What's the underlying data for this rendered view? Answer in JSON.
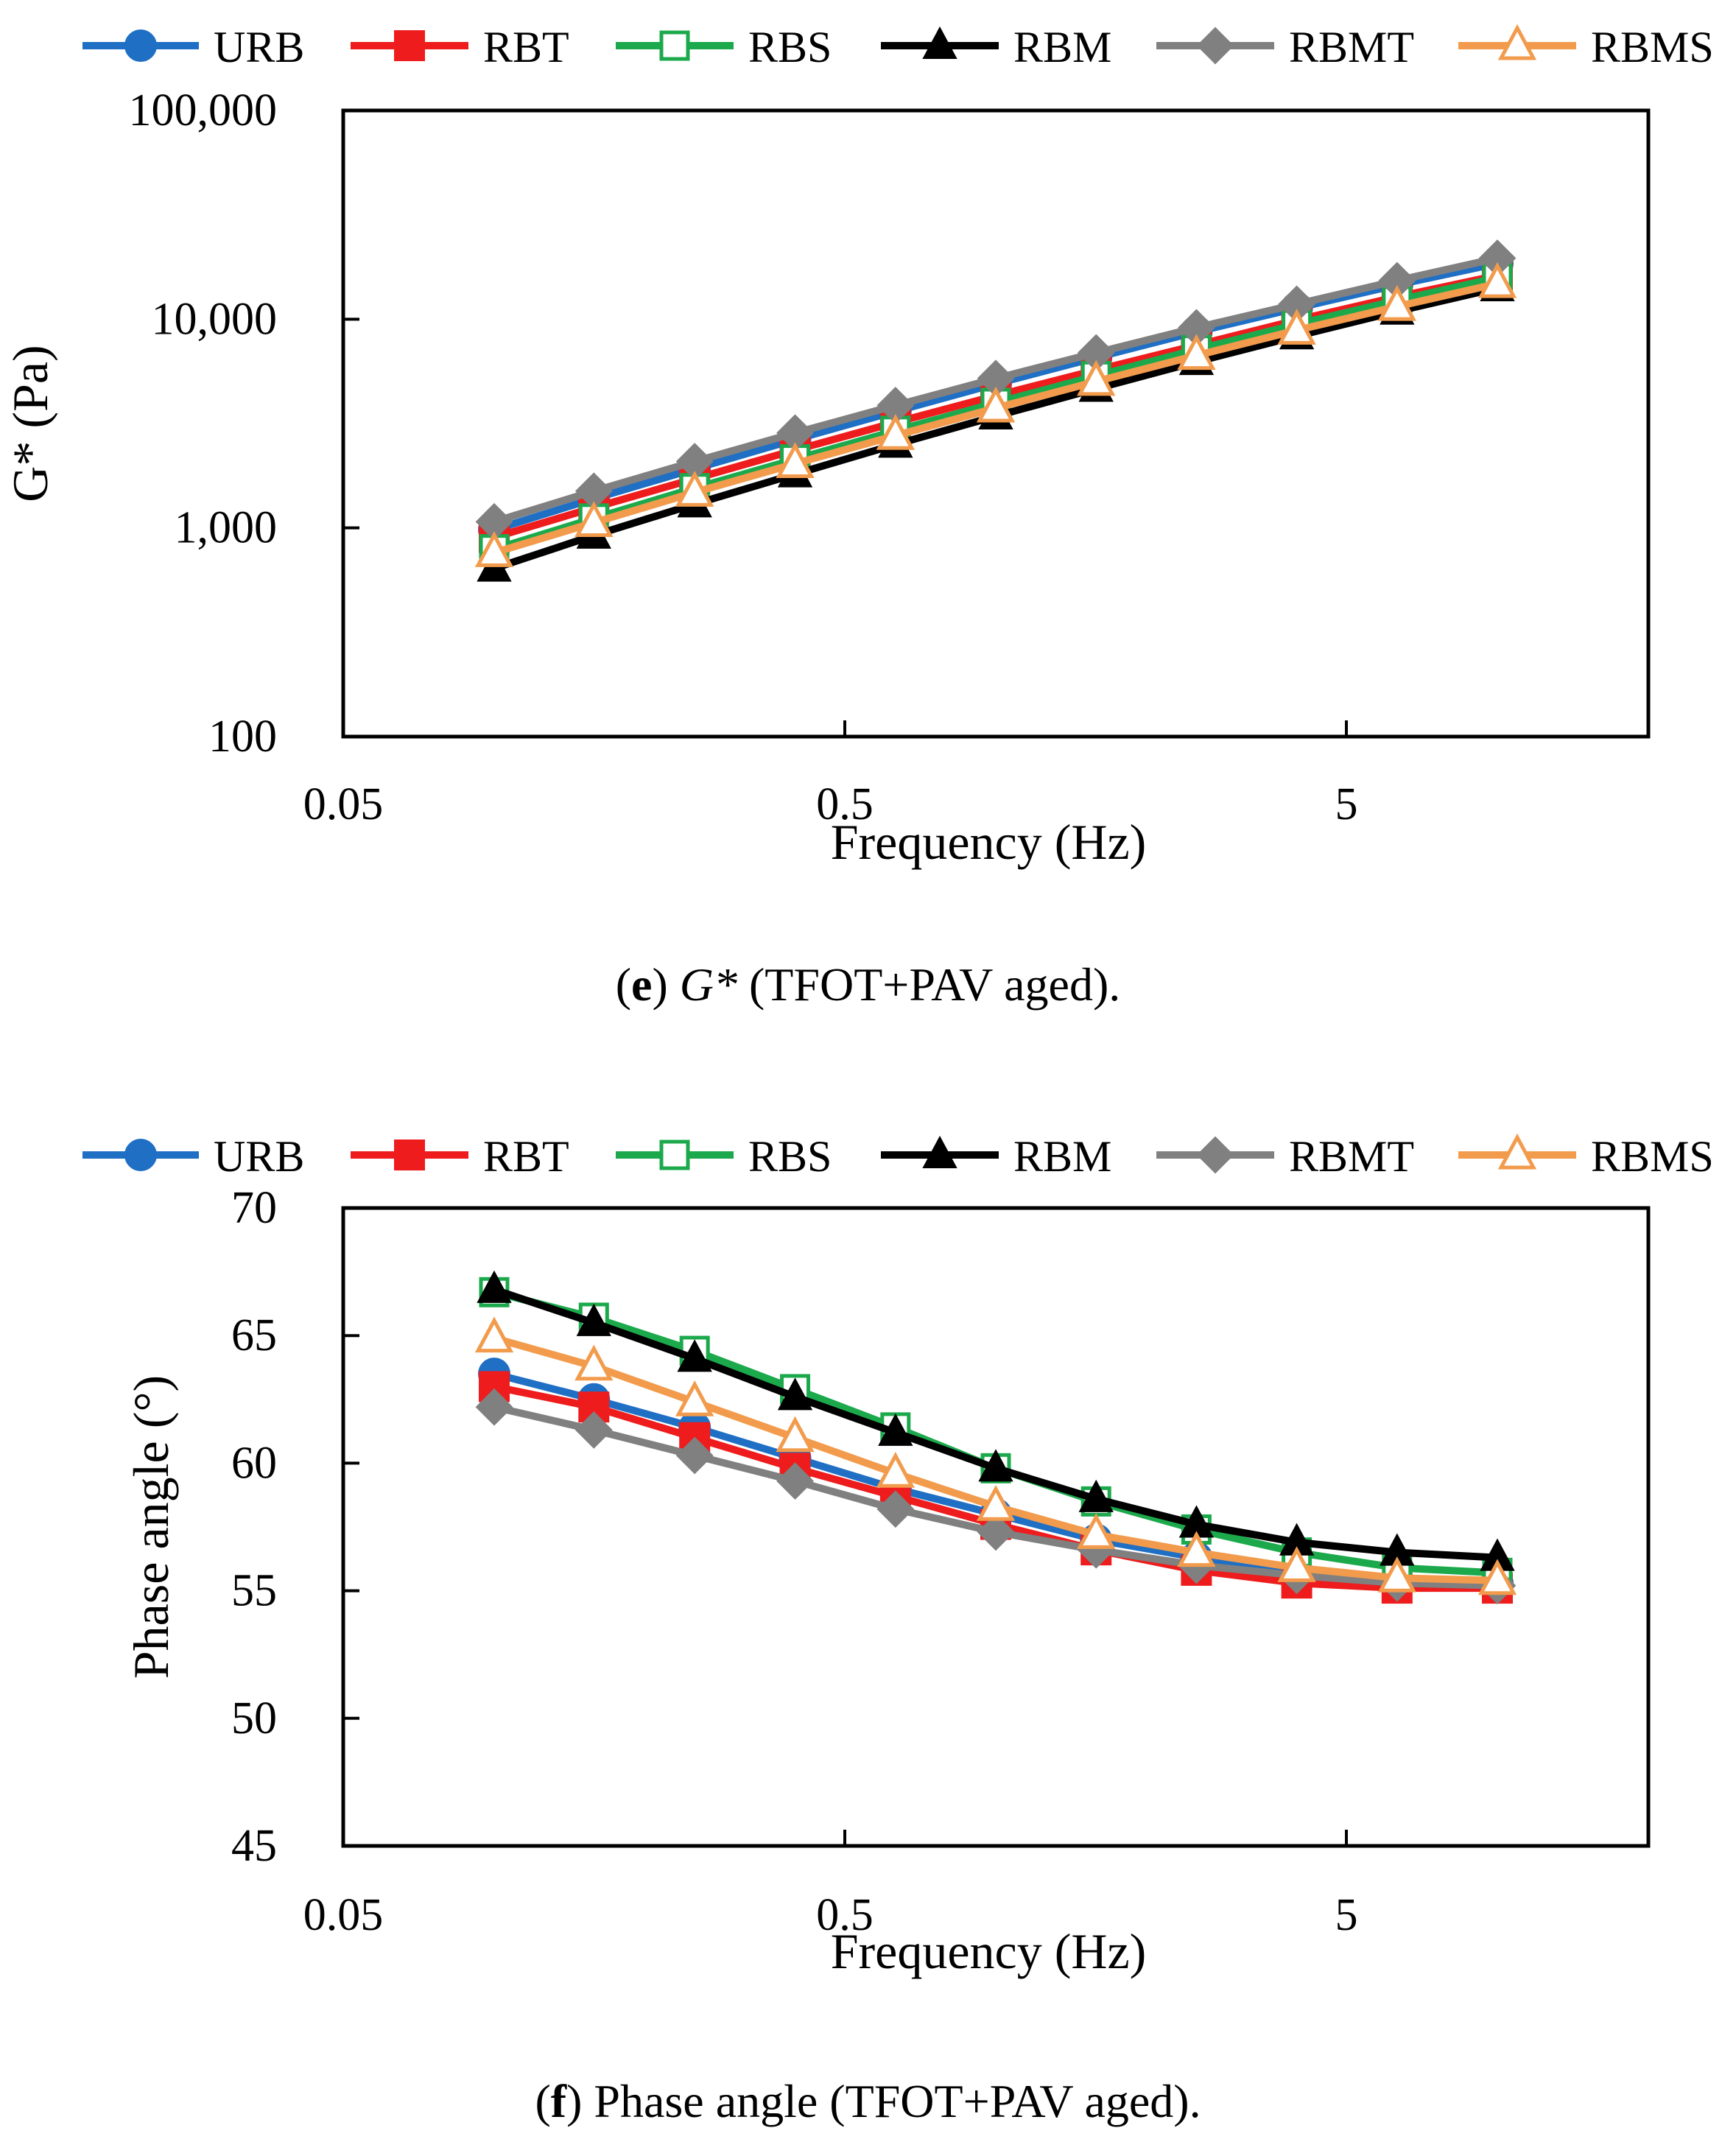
{
  "colors": {
    "URB": "#1f6fc4",
    "RBT": "#ee1c1c",
    "RBS": "#1ca94c",
    "RBM": "#000000",
    "RBMT": "#808080",
    "RBMS": "#f29b4c"
  },
  "markers": {
    "URB": "circle",
    "RBT": "square",
    "RBS": "square-open",
    "RBM": "triangle",
    "RBMT": "diamond",
    "RBMS": "triangle-open"
  },
  "captions": {
    "e": {
      "label": "e",
      "symbol": "G*",
      "text": " (TFOT+PAV aged)."
    },
    "f": {
      "label": "f",
      "text": " Phase angle (TFOT+PAV aged)."
    }
  },
  "chart_data": [
    {
      "id": "e",
      "type": "line",
      "xscale": "log",
      "yscale": "log",
      "xlabel": "Frequency (Hz)",
      "ylabel": "G* (Pa)",
      "xlim": [
        0.05,
        20
      ],
      "ylim": [
        100,
        100000
      ],
      "xticks": [
        0.05,
        0.5,
        5
      ],
      "xtick_labels": [
        "0.05",
        "0.5",
        "5"
      ],
      "yticks": [
        100,
        1000,
        10000,
        100000
      ],
      "ytick_labels": [
        "100",
        "1,000",
        "10,000",
        "100,000"
      ],
      "legend": [
        "URB",
        "RBT",
        "RBS",
        "RBM",
        "RBMT",
        "RBMS"
      ],
      "legend_position": "top",
      "x": [
        0.1,
        0.158,
        0.251,
        0.398,
        0.631,
        1.0,
        1.585,
        2.512,
        3.981,
        6.31,
        10.0
      ],
      "series": [
        {
          "name": "URB",
          "values": [
            980,
            1380,
            1920,
            2650,
            3620,
            4900,
            6550,
            8700,
            11300,
            14600,
            18500
          ]
        },
        {
          "name": "RBT",
          "values": [
            900,
            1250,
            1720,
            2360,
            3200,
            4300,
            5700,
            7500,
            9900,
            12800,
            16200
          ]
        },
        {
          "name": "RBS",
          "values": [
            790,
            1110,
            1550,
            2130,
            2920,
            3970,
            5350,
            7150,
            9450,
            12300,
            15800
          ]
        },
        {
          "name": "RBM",
          "values": [
            640,
            920,
            1300,
            1810,
            2510,
            3430,
            4650,
            6250,
            8300,
            10900,
            14100
          ]
        },
        {
          "name": "RBMT",
          "values": [
            1070,
            1500,
            2080,
            2850,
            3860,
            5200,
            6900,
            9100,
            11800,
            15300,
            19600
          ]
        },
        {
          "name": "RBMS",
          "values": [
            760,
            1060,
            1480,
            2030,
            2770,
            3750,
            5030,
            6700,
            8850,
            11500,
            14800
          ]
        }
      ]
    },
    {
      "id": "f",
      "type": "line",
      "xscale": "log",
      "yscale": "linear",
      "xlabel": "Frequency (Hz)",
      "ylabel": "Phase angle (°)",
      "xlim": [
        0.05,
        20
      ],
      "ylim": [
        45,
        70
      ],
      "xticks": [
        0.05,
        0.5,
        5
      ],
      "xtick_labels": [
        "0.05",
        "0.5",
        "5"
      ],
      "yticks": [
        45,
        50,
        55,
        60,
        65,
        70
      ],
      "ytick_labels": [
        "45",
        "50",
        "55",
        "60",
        "65",
        "70"
      ],
      "legend": [
        "URB",
        "RBT",
        "RBS",
        "RBM",
        "RBMT",
        "RBMS"
      ],
      "legend_position": "top",
      "x": [
        0.1,
        0.158,
        0.251,
        0.398,
        0.631,
        1.0,
        1.585,
        2.512,
        3.981,
        6.31,
        10.0
      ],
      "series": [
        {
          "name": "URB",
          "values": [
            63.5,
            62.5,
            61.4,
            60.2,
            59.0,
            58.0,
            57.0,
            56.3,
            55.7,
            55.4,
            55.3
          ]
        },
        {
          "name": "RBT",
          "values": [
            63.0,
            62.2,
            61.0,
            59.8,
            58.7,
            57.6,
            56.6,
            55.8,
            55.3,
            55.1,
            55.1
          ]
        },
        {
          "name": "RBS",
          "values": [
            66.7,
            65.7,
            64.4,
            62.9,
            61.4,
            59.8,
            58.5,
            57.4,
            56.5,
            55.9,
            55.7
          ]
        },
        {
          "name": "RBM",
          "values": [
            66.8,
            65.5,
            64.1,
            62.6,
            61.2,
            59.8,
            58.6,
            57.6,
            56.9,
            56.5,
            56.3
          ]
        },
        {
          "name": "RBMT",
          "values": [
            62.2,
            61.3,
            60.3,
            59.3,
            58.2,
            57.3,
            56.6,
            56.0,
            55.6,
            55.3,
            55.2
          ]
        },
        {
          "name": "RBMS",
          "values": [
            64.9,
            63.8,
            62.4,
            61.0,
            59.6,
            58.3,
            57.2,
            56.5,
            55.9,
            55.5,
            55.4
          ]
        }
      ]
    }
  ]
}
